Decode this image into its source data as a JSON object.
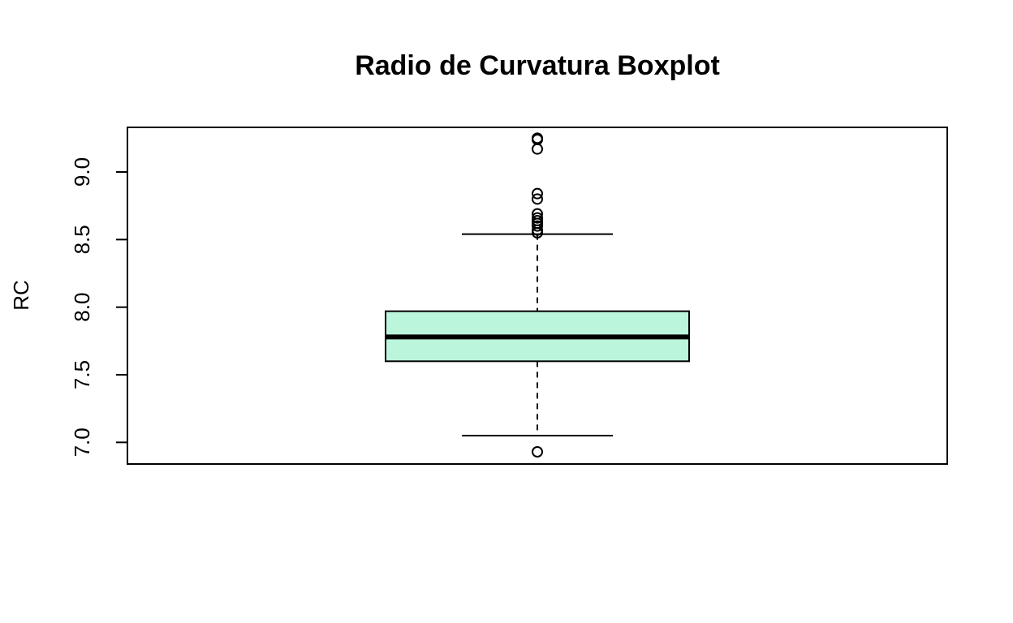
{
  "chart_data": {
    "type": "boxplot",
    "title": "Radio de Curvatura Boxplot",
    "xlabel": "",
    "ylabel": "RC",
    "ylim": [
      6.84,
      9.33
    ],
    "yticks": [
      7.0,
      7.5,
      8.0,
      8.5,
      9.0
    ],
    "ytick_labels": [
      "7.0",
      "7.5",
      "8.0",
      "8.5",
      "9.0"
    ],
    "box_color": "#BBF5DB",
    "grid": false,
    "boxes": [
      {
        "whisker_low": 7.05,
        "q1": 7.6,
        "median": 7.78,
        "q3": 7.97,
        "whisker_high": 8.54,
        "outliers": [
          9.25,
          9.24,
          9.17,
          8.84,
          8.8,
          8.69,
          8.66,
          8.64,
          8.62,
          8.6,
          8.57,
          8.55,
          6.93
        ]
      }
    ]
  }
}
